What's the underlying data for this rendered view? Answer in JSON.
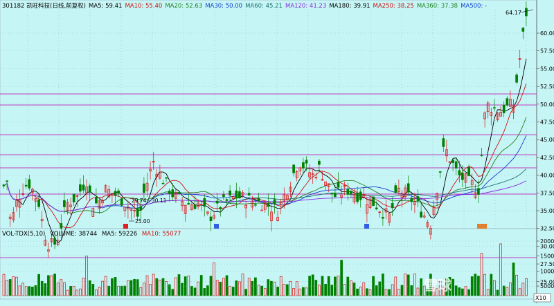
{
  "header": {
    "code": "301182 凯旺科技(日线,前复权)",
    "ma": [
      {
        "label": "MA5: 59.41",
        "color": "#000000"
      },
      {
        "label": "MA10: 55.40",
        "color": "#d01010"
      },
      {
        "label": "MA20: 52.63",
        "color": "#208020"
      },
      {
        "label": "MA30: 50.00",
        "color": "#1040d0"
      },
      {
        "label": "MA60: 45.21",
        "color": "#1e7070"
      },
      {
        "label": "MA120: 41.23",
        "color": "#8a2be2"
      },
      {
        "label": "MA180: 39.91",
        "color": "#000000"
      },
      {
        "label": "MA250: 38.25",
        "color": "#d01010"
      },
      {
        "label": "MA360: 37.38",
        "color": "#208020"
      },
      {
        "label": "MA500: -",
        "color": "#1040d0"
      }
    ]
  },
  "price_axis": {
    "ticks": [
      "60.00",
      "57.50",
      "55.00",
      "52.50",
      "50.00",
      "47.50",
      "45.00",
      "42.50",
      "40.00",
      "37.50",
      "35.00",
      "32.50",
      "30.00",
      "27.50",
      "25.00"
    ]
  },
  "annotations": {
    "high": "64.17",
    "low": "25.00",
    "range": "29.74 - 30.11"
  },
  "volume_header": {
    "title": "VOL-TDX(5,10)",
    "volume": "VOLUME: 38744",
    "ma5": "MA5: 59226",
    "ma10": "MA10: 55077"
  },
  "volume_axis": {
    "ticks": [
      "20000",
      "15000",
      "10000",
      "5000"
    ],
    "unit": "X10"
  },
  "watermark": "雪球",
  "colors": {
    "up": "#e01010",
    "down": "#008000",
    "bg": "#c6f5f5",
    "hline": "#c000c0"
  }
}
